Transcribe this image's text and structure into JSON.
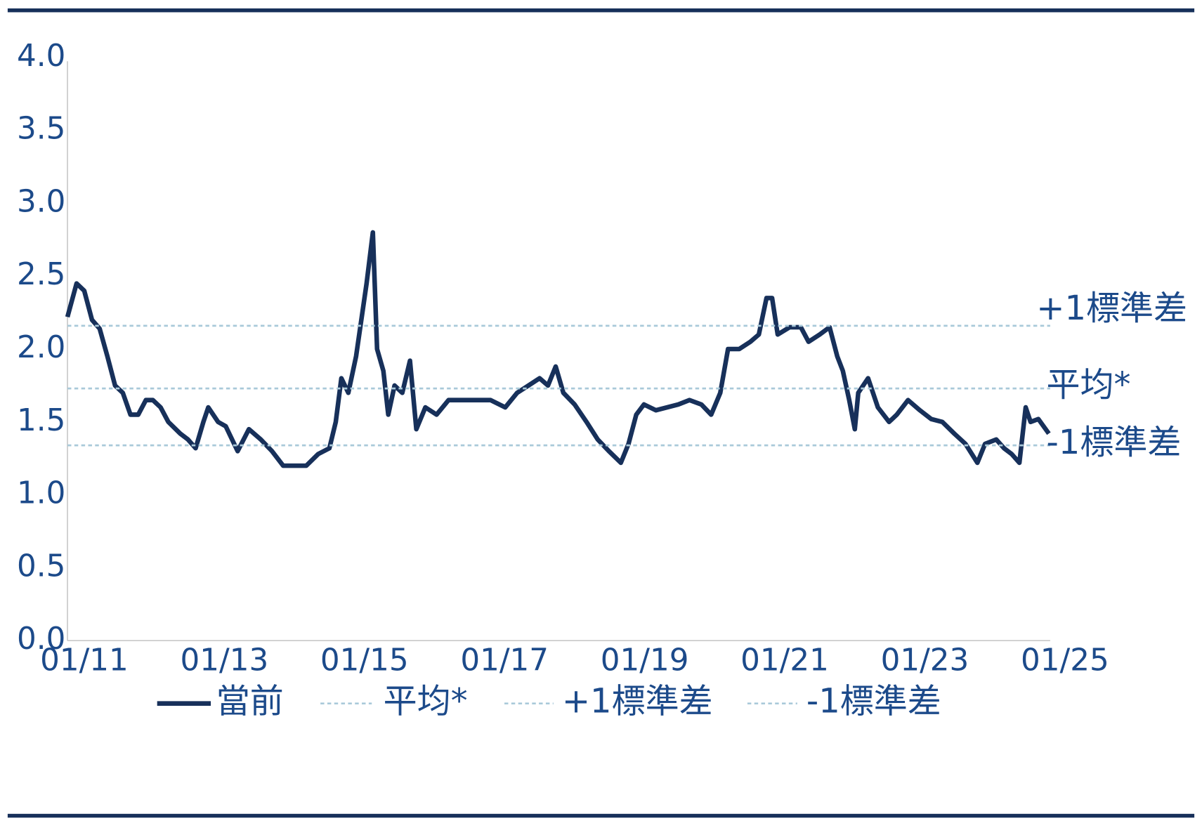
{
  "chart_data": {
    "type": "line",
    "xlim": [
      2010.76,
      2024.79
    ],
    "xticks": [
      {
        "value": 2011,
        "label": "01/11"
      },
      {
        "value": 2013,
        "label": "01/13"
      },
      {
        "value": 2015,
        "label": "01/15"
      },
      {
        "value": 2017,
        "label": "01/17"
      },
      {
        "value": 2019,
        "label": "01/19"
      },
      {
        "value": 2021,
        "label": "01/21"
      },
      {
        "value": 2023,
        "label": "01/23"
      },
      {
        "value": 2025,
        "label": "01/25"
      }
    ],
    "ylim": [
      0,
      4
    ],
    "yticks": [
      {
        "value": 0,
        "label": "0.0"
      },
      0.5,
      {
        "value": 1,
        "label": "1.0"
      },
      1.5,
      {
        "value": 2,
        "label": "2.0"
      },
      2.5,
      {
        "value": 3,
        "label": "3.0"
      },
      3.5,
      {
        "value": 4,
        "label": "4.0"
      }
    ],
    "series": [
      {
        "name": "當前",
        "color": "#17305a",
        "x": [
          2010.76,
          2010.89,
          2011.0,
          2011.11,
          2011.22,
          2011.33,
          2011.44,
          2011.55,
          2011.66,
          2011.77,
          2011.88,
          2011.98,
          2012.09,
          2012.2,
          2012.37,
          2012.48,
          2012.59,
          2012.7,
          2012.77,
          2012.91,
          2013.02,
          2013.19,
          2013.35,
          2013.52,
          2013.68,
          2013.84,
          2014.01,
          2014.17,
          2014.34,
          2014.5,
          2014.59,
          2014.67,
          2014.77,
          2014.88,
          2015.03,
          2015.12,
          2015.18,
          2015.27,
          2015.34,
          2015.43,
          2015.54,
          2015.65,
          2015.74,
          2015.87,
          2016.03,
          2016.2,
          2016.36,
          2016.58,
          2016.8,
          2017.01,
          2017.18,
          2017.34,
          2017.5,
          2017.62,
          2017.73,
          2017.84,
          2018.0,
          2018.17,
          2018.33,
          2018.49,
          2018.66,
          2018.77,
          2018.88,
          2018.99,
          2019.16,
          2019.32,
          2019.48,
          2019.64,
          2019.81,
          2019.95,
          2020.08,
          2020.19,
          2020.35,
          2020.51,
          2020.63,
          2020.74,
          2020.82,
          2020.9,
          2021.07,
          2021.23,
          2021.34,
          2021.5,
          2021.64,
          2021.75,
          2021.83,
          2021.92,
          2022.0,
          2022.05,
          2022.19,
          2022.33,
          2022.49,
          2022.6,
          2022.76,
          2022.93,
          2023.09,
          2023.25,
          2023.42,
          2023.58,
          2023.75,
          2023.86,
          2024.02,
          2024.13,
          2024.24,
          2024.35,
          2024.44,
          2024.51,
          2024.62,
          2024.77
        ],
        "values": [
          2.22,
          2.45,
          2.4,
          2.2,
          2.14,
          1.95,
          1.75,
          1.7,
          1.55,
          1.55,
          1.65,
          1.65,
          1.6,
          1.5,
          1.42,
          1.38,
          1.32,
          1.5,
          1.6,
          1.5,
          1.47,
          1.3,
          1.45,
          1.38,
          1.3,
          1.2,
          1.2,
          1.2,
          1.28,
          1.32,
          1.5,
          1.8,
          1.7,
          1.95,
          2.45,
          2.8,
          2.0,
          1.85,
          1.55,
          1.75,
          1.7,
          1.92,
          1.45,
          1.6,
          1.55,
          1.65,
          1.65,
          1.65,
          1.65,
          1.6,
          1.7,
          1.75,
          1.8,
          1.75,
          1.88,
          1.7,
          1.62,
          1.5,
          1.38,
          1.3,
          1.22,
          1.35,
          1.55,
          1.62,
          1.58,
          1.6,
          1.62,
          1.65,
          1.62,
          1.55,
          1.7,
          2.0,
          2.0,
          2.05,
          2.1,
          2.35,
          2.35,
          2.1,
          2.15,
          2.15,
          2.05,
          2.1,
          2.15,
          1.95,
          1.85,
          1.65,
          1.45,
          1.7,
          1.8,
          1.6,
          1.5,
          1.55,
          1.65,
          1.58,
          1.52,
          1.5,
          1.42,
          1.35,
          1.22,
          1.35,
          1.38,
          1.32,
          1.28,
          1.22,
          1.6,
          1.5,
          1.52,
          1.42
        ]
      },
      {
        "name": "平均*",
        "color": "#a9c9d9",
        "x": [
          2010.76,
          2024.79
        ],
        "values": [
          1.73,
          1.73
        ]
      },
      {
        "name": "+1標準差",
        "color": "#a9c9d9",
        "x": [
          2010.76,
          2024.79
        ],
        "values": [
          2.16,
          2.16
        ]
      },
      {
        "name": "-1標準差",
        "color": "#a9c9d9",
        "x": [
          2010.76,
          2024.79
        ],
        "values": [
          1.34,
          1.34
        ]
      }
    ]
  }
}
